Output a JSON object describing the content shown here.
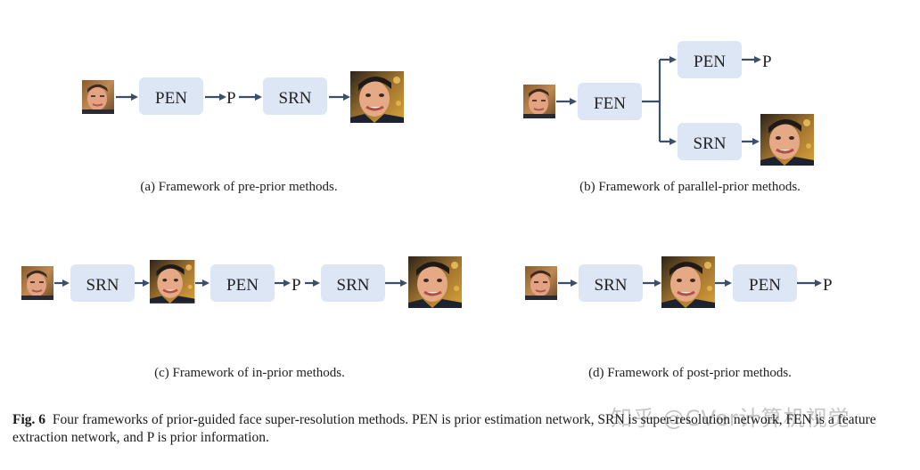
{
  "diagram": {
    "labels": {
      "pen": "PEN",
      "srn": "SRN",
      "fen": "FEN",
      "p": "P"
    },
    "captions": {
      "a": "(a) Framework of pre-prior methods.",
      "b": "(b) Framework of parallel-prior methods.",
      "c": "(c) Framework of in-prior methods.",
      "d": "(d) Framework of post-prior methods."
    },
    "colors": {
      "box": "#dde6f5",
      "arrow": "#3b4f6a",
      "text": "#222222"
    }
  },
  "figure_caption": {
    "label": "Fig. 6",
    "text": "Four frameworks of prior-guided face super-resolution methods. PEN is prior estimation network, SRN is super-resolution network, FEN is a feature extraction network, and P is prior information."
  },
  "watermark": "知乎 @CVer计算机视觉"
}
